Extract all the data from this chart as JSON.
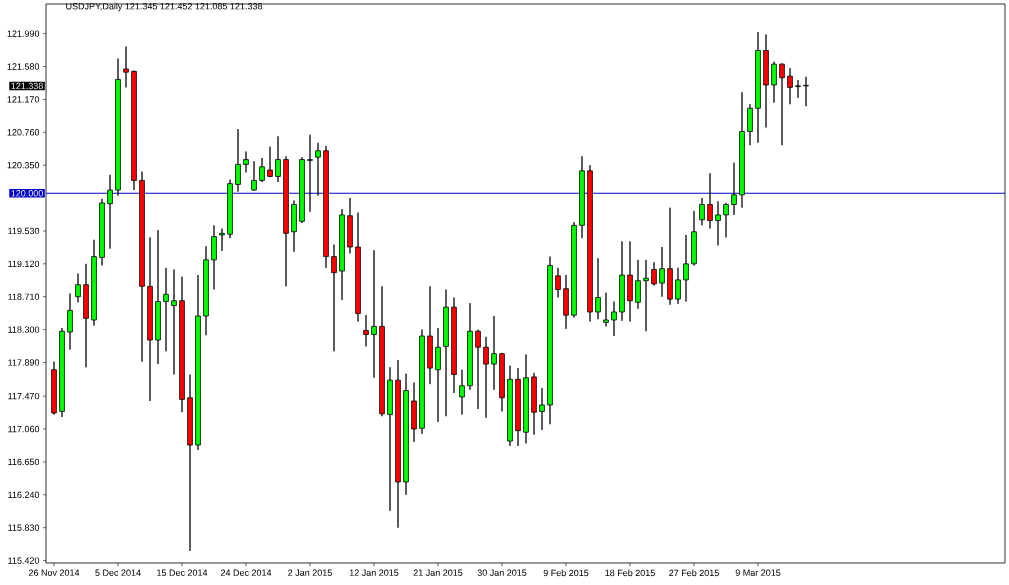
{
  "chart_data": {
    "type": "candlestick",
    "title": "USDJPY,Daily 121.345 121.452 121.085 121.338",
    "categories": [
      "26 Nov 2014",
      null,
      null,
      null,
      null,
      null,
      null,
      null,
      "5 Dec 2014",
      null,
      null,
      null,
      null,
      null,
      null,
      null,
      "15 Dec 2014",
      null,
      null,
      null,
      null,
      null,
      null,
      null,
      "24 Dec 2014",
      null,
      null,
      null,
      null,
      null,
      null,
      null,
      "2 Jan 2015",
      null,
      null,
      null,
      null,
      null,
      null,
      null,
      "12 Jan 2015",
      null,
      null,
      null,
      null,
      null,
      null,
      null,
      "21 Jan 2015",
      null,
      null,
      null,
      null,
      null,
      null,
      null,
      "30 Jan 2015",
      null,
      null,
      null,
      null,
      null,
      null,
      null,
      "9 Feb 2015",
      null,
      null,
      null,
      null,
      null,
      null,
      null,
      "18 Feb 2015",
      null,
      null,
      null,
      null,
      null,
      null,
      null,
      "27 Feb 2015",
      null,
      null,
      null,
      null,
      null,
      null,
      null,
      "9 Mar 2015",
      null,
      null,
      null,
      null,
      null,
      null
    ],
    "ohlc": [
      [
        117.8,
        117.9,
        117.24,
        117.26
      ],
      [
        117.28,
        118.32,
        117.21,
        118.28
      ],
      [
        118.27,
        118.75,
        118.05,
        118.54
      ],
      [
        118.71,
        119.0,
        118.64,
        118.86
      ],
      [
        118.86,
        119.12,
        117.83,
        118.44
      ],
      [
        118.42,
        119.42,
        118.35,
        119.21
      ],
      [
        119.2,
        119.93,
        119.1,
        119.88
      ],
      [
        119.87,
        120.23,
        119.31,
        120.04
      ],
      [
        120.04,
        121.68,
        119.97,
        121.42
      ],
      [
        121.55,
        121.83,
        121.32,
        121.51
      ],
      [
        121.52,
        121.53,
        120.04,
        120.16
      ],
      [
        120.16,
        120.27,
        117.9,
        118.84
      ],
      [
        118.84,
        119.45,
        117.41,
        118.17
      ],
      [
        118.17,
        119.54,
        117.87,
        118.65
      ],
      [
        118.65,
        119.07,
        118.03,
        118.74
      ],
      [
        118.6,
        119.05,
        117.74,
        118.66
      ],
      [
        118.66,
        118.96,
        117.27,
        117.43
      ],
      [
        117.45,
        117.74,
        115.54,
        116.86
      ],
      [
        116.86,
        118.98,
        116.8,
        118.47
      ],
      [
        118.47,
        119.34,
        118.23,
        119.17
      ],
      [
        119.17,
        119.6,
        118.8,
        119.46
      ],
      [
        119.48,
        119.56,
        119.28,
        119.5
      ],
      [
        119.49,
        120.17,
        119.44,
        120.12
      ],
      [
        120.11,
        120.8,
        120.02,
        120.36
      ],
      [
        120.36,
        120.52,
        120.26,
        120.42
      ],
      [
        120.04,
        120.4,
        120.03,
        120.16
      ],
      [
        120.16,
        120.44,
        120.14,
        120.33
      ],
      [
        120.29,
        120.58,
        120.2,
        120.21
      ],
      [
        120.21,
        120.71,
        120.14,
        120.42
      ],
      [
        120.42,
        120.46,
        118.84,
        119.5
      ],
      [
        119.52,
        119.91,
        119.27,
        119.86
      ],
      [
        119.65,
        120.45,
        119.63,
        120.42
      ],
      [
        120.41,
        120.73,
        119.77,
        120.42
      ],
      [
        120.45,
        120.63,
        119.97,
        120.53
      ],
      [
        120.53,
        120.59,
        119.07,
        119.21
      ],
      [
        119.21,
        119.36,
        118.03,
        119.01
      ],
      [
        119.03,
        119.8,
        118.67,
        119.73
      ],
      [
        119.72,
        119.94,
        119.25,
        119.33
      ],
      [
        119.33,
        119.76,
        118.4,
        118.5
      ],
      [
        118.29,
        118.48,
        118.09,
        118.24
      ],
      [
        118.24,
        119.29,
        117.7,
        118.34
      ],
      [
        118.34,
        118.84,
        117.22,
        117.25
      ],
      [
        117.24,
        117.83,
        116.04,
        117.67
      ],
      [
        117.67,
        117.92,
        115.83,
        116.4
      ],
      [
        116.4,
        117.75,
        116.24,
        117.54
      ],
      [
        117.41,
        117.64,
        116.9,
        117.06
      ],
      [
        117.07,
        118.3,
        117.0,
        118.22
      ],
      [
        118.22,
        118.84,
        117.62,
        117.82
      ],
      [
        117.8,
        118.32,
        117.15,
        118.08
      ],
      [
        118.09,
        118.8,
        117.22,
        118.58
      ],
      [
        118.58,
        118.7,
        117.51,
        117.74
      ],
      [
        117.46,
        117.8,
        117.24,
        117.6
      ],
      [
        117.6,
        118.63,
        117.55,
        118.28
      ],
      [
        118.28,
        118.3,
        117.31,
        118.08
      ],
      [
        118.08,
        118.21,
        117.2,
        117.87
      ],
      [
        117.87,
        118.47,
        117.55,
        118.0
      ],
      [
        118.0,
        118.01,
        117.28,
        117.45
      ],
      [
        116.91,
        117.85,
        116.85,
        117.68
      ],
      [
        117.68,
        117.82,
        116.85,
        117.04
      ],
      [
        117.02,
        117.99,
        116.88,
        117.7
      ],
      [
        117.71,
        117.76,
        116.99,
        117.27
      ],
      [
        117.28,
        117.57,
        117.05,
        117.36
      ],
      [
        117.36,
        119.21,
        117.12,
        119.1
      ],
      [
        118.97,
        119.07,
        118.7,
        118.8
      ],
      [
        118.81,
        118.98,
        118.31,
        118.48
      ],
      [
        118.48,
        119.64,
        118.45,
        119.6
      ],
      [
        119.6,
        120.46,
        119.44,
        120.28
      ],
      [
        120.28,
        120.35,
        118.4,
        118.52
      ],
      [
        118.52,
        119.19,
        118.43,
        118.7
      ],
      [
        118.39,
        118.76,
        118.34,
        118.42
      ],
      [
        118.42,
        118.65,
        118.22,
        118.52
      ],
      [
        118.52,
        119.4,
        118.41,
        118.98
      ],
      [
        118.98,
        119.4,
        118.4,
        118.66
      ],
      [
        118.64,
        119.17,
        118.56,
        118.91
      ],
      [
        118.91,
        119.17,
        118.28,
        118.94
      ],
      [
        119.05,
        119.14,
        118.85,
        118.87
      ],
      [
        118.88,
        119.33,
        118.71,
        119.06
      ],
      [
        119.06,
        119.82,
        118.61,
        118.68
      ],
      [
        118.68,
        119.07,
        118.62,
        118.92
      ],
      [
        118.92,
        119.48,
        118.65,
        119.12
      ],
      [
        119.12,
        119.78,
        119.1,
        119.52
      ],
      [
        119.67,
        119.94,
        119.6,
        119.86
      ],
      [
        119.86,
        120.25,
        119.56,
        119.66
      ],
      [
        119.66,
        119.9,
        119.35,
        119.73
      ],
      [
        119.73,
        119.88,
        119.45,
        119.86
      ],
      [
        119.86,
        120.38,
        119.73,
        119.98
      ],
      [
        119.98,
        121.26,
        119.82,
        120.77
      ],
      [
        120.77,
        121.11,
        120.6,
        121.06
      ],
      [
        121.06,
        122.01,
        120.63,
        121.78
      ],
      [
        121.78,
        121.98,
        120.82,
        121.35
      ],
      [
        121.35,
        121.64,
        121.13,
        121.61
      ],
      [
        121.61,
        121.62,
        120.6,
        121.44
      ],
      [
        121.46,
        121.56,
        121.11,
        121.32
      ],
      [
        121.33,
        121.41,
        121.19,
        121.34
      ],
      [
        121.345,
        121.452,
        121.085,
        121.338
      ]
    ],
    "colors": [
      "#ff0000",
      "#00ff00",
      "#00ff00",
      "#00ff00",
      "#ff0000",
      "#00ff00",
      "#00ff00",
      "#00ff00",
      "#00ff00",
      "#ff0000",
      "#ff0000",
      "#ff0000",
      "#ff0000",
      "#00ff00",
      "#00ff00",
      "#00ff00",
      "#ff0000",
      "#ff0000",
      "#00ff00",
      "#00ff00",
      "#00ff00",
      "#00ff00",
      "#00ff00",
      "#00ff00",
      "#00ff00",
      "#00ff00",
      "#00ff00",
      "#ff0000",
      "#00ff00",
      "#ff0000",
      "#00ff00",
      "#00ff00",
      "#00ff00",
      "#00ff00",
      "#ff0000",
      "#ff0000",
      "#00ff00",
      "#ff0000",
      "#ff0000",
      "#ff0000",
      "#00ff00",
      "#ff0000",
      "#00ff00",
      "#ff0000",
      "#00ff00",
      "#ff0000",
      "#00ff00",
      "#ff0000",
      "#00ff00",
      "#00ff00",
      "#ff0000",
      "#00ff00",
      "#00ff00",
      "#ff0000",
      "#ff0000",
      "#00ff00",
      "#ff0000",
      "#00ff00",
      "#ff0000",
      "#00ff00",
      "#ff0000",
      "#00ff00",
      "#00ff00",
      "#ff0000",
      "#ff0000",
      "#00ff00",
      "#00ff00",
      "#ff0000",
      "#00ff00",
      "#00ff00",
      "#00ff00",
      "#00ff00",
      "#ff0000",
      "#00ff00",
      "#00ff00",
      "#ff0000",
      "#00ff00",
      "#ff0000",
      "#00ff00",
      "#00ff00",
      "#00ff00",
      "#00ff00",
      "#ff0000",
      "#00ff00",
      "#00ff00",
      "#00ff00",
      "#00ff00",
      "#00ff00",
      "#00ff00",
      "#ff0000",
      "#00ff00",
      "#ff0000",
      "#ff0000",
      "#00ff00",
      "#ff0000"
    ],
    "ylim": [
      115.39,
      122.36
    ],
    "yticks": [
      {
        "value": 115.42,
        "label": "115.420"
      },
      {
        "value": 115.83,
        "label": "115.830"
      },
      {
        "value": 116.24,
        "label": "116.240"
      },
      {
        "value": 116.65,
        "label": "116.650"
      },
      {
        "value": 117.06,
        "label": "117.060"
      },
      {
        "value": 117.47,
        "label": "117.470"
      },
      {
        "value": 117.89,
        "label": "117.890"
      },
      {
        "value": 118.3,
        "label": "118.300"
      },
      {
        "value": 118.71,
        "label": "118.710"
      },
      {
        "value": 119.12,
        "label": "119.120"
      },
      {
        "value": 119.53,
        "label": "119.530"
      },
      {
        "value": 120.35,
        "label": "120.350"
      },
      {
        "value": 120.76,
        "label": "120.760"
      },
      {
        "value": 121.17,
        "label": "121.170"
      },
      {
        "value": 121.58,
        "label": "121.580"
      },
      {
        "value": 121.99,
        "label": "121.990"
      }
    ],
    "ref_lines": [
      {
        "axis": "y",
        "value": 120,
        "label": "120.000",
        "color": "#0000c8"
      }
    ],
    "annotations": [
      "121.338"
    ]
  }
}
